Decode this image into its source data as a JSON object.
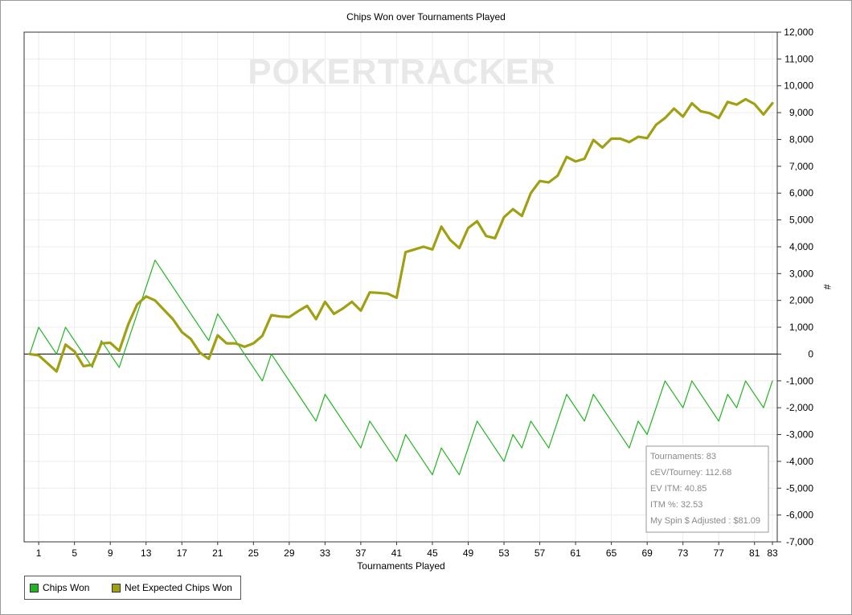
{
  "chart_data": {
    "type": "line",
    "title": "Chips Won over Tournaments Played",
    "xlabel": "Tournaments Played",
    "ylabel": "#",
    "watermark": "POKERTRACKER",
    "xlim": [
      0,
      83
    ],
    "ylim": [
      -7000,
      12000
    ],
    "x_ticks": [
      1,
      5,
      9,
      13,
      17,
      21,
      25,
      29,
      33,
      37,
      41,
      45,
      49,
      53,
      57,
      61,
      65,
      69,
      73,
      77,
      81,
      83
    ],
    "y_ticks": [
      -7000,
      -6000,
      -5000,
      -4000,
      -3000,
      -2000,
      -1000,
      0,
      1000,
      2000,
      3000,
      4000,
      5000,
      6000,
      7000,
      8000,
      9000,
      10000,
      11000,
      12000
    ],
    "y_tick_labels": [
      "-7,000",
      "-6,000",
      "-5,000",
      "-4,000",
      "-3,000",
      "-2,000",
      "-1,000",
      "0",
      "1,000",
      "2,000",
      "3,000",
      "4,000",
      "5,000",
      "6,000",
      "7,000",
      "8,000",
      "9,000",
      "10,000",
      "11,000",
      "12,000"
    ],
    "grid": true,
    "legend_position": "bottom-left",
    "series": [
      {
        "name": "Chips Won",
        "color": "#22b422",
        "points": [
          [
            0,
            0
          ],
          [
            1,
            1000
          ],
          [
            3,
            0
          ],
          [
            4,
            1000
          ],
          [
            7,
            -500
          ],
          [
            8,
            500
          ],
          [
            10,
            -500
          ],
          [
            14,
            3500
          ],
          [
            20,
            500
          ],
          [
            21,
            1500
          ],
          [
            26,
            -1000
          ],
          [
            27,
            0
          ],
          [
            32,
            -2500
          ],
          [
            33,
            -1500
          ],
          [
            37,
            -3500
          ],
          [
            38,
            -2500
          ],
          [
            41,
            -4000
          ],
          [
            42,
            -3000
          ],
          [
            45,
            -4500
          ],
          [
            46,
            -3500
          ],
          [
            48,
            -4500
          ],
          [
            50,
            -2500
          ],
          [
            53,
            -4000
          ],
          [
            54,
            -3000
          ],
          [
            55,
            -3500
          ],
          [
            56,
            -2500
          ],
          [
            58,
            -3500
          ],
          [
            60,
            -1500
          ],
          [
            62,
            -2500
          ],
          [
            63,
            -1500
          ],
          [
            67,
            -3500
          ],
          [
            68,
            -2500
          ],
          [
            69,
            -3000
          ],
          [
            71,
            -1000
          ],
          [
            73,
            -2000
          ],
          [
            74,
            -1000
          ],
          [
            77,
            -2500
          ],
          [
            78,
            -1500
          ],
          [
            79,
            -2000
          ],
          [
            80,
            -1000
          ],
          [
            82,
            -2000
          ],
          [
            83,
            -1000
          ]
        ]
      },
      {
        "name": "Net Expected Chips Won",
        "color": "#a0a014",
        "points": [
          [
            0,
            0
          ],
          [
            1,
            -50
          ],
          [
            2,
            -350
          ],
          [
            3,
            -650
          ],
          [
            4,
            350
          ],
          [
            5,
            100
          ],
          [
            6,
            -450
          ],
          [
            7,
            -400
          ],
          [
            8,
            400
          ],
          [
            9,
            420
          ],
          [
            10,
            120
          ],
          [
            11,
            1100
          ],
          [
            12,
            1850
          ],
          [
            13,
            2150
          ],
          [
            14,
            2000
          ],
          [
            15,
            1650
          ],
          [
            16,
            1300
          ],
          [
            17,
            820
          ],
          [
            18,
            560
          ],
          [
            19,
            60
          ],
          [
            20,
            -180
          ],
          [
            21,
            700
          ],
          [
            22,
            400
          ],
          [
            23,
            400
          ],
          [
            24,
            270
          ],
          [
            25,
            400
          ],
          [
            26,
            680
          ],
          [
            27,
            1450
          ],
          [
            28,
            1400
          ],
          [
            29,
            1380
          ],
          [
            30,
            1600
          ],
          [
            31,
            1800
          ],
          [
            32,
            1300
          ],
          [
            33,
            1950
          ],
          [
            34,
            1500
          ],
          [
            35,
            1700
          ],
          [
            36,
            1950
          ],
          [
            37,
            1620
          ],
          [
            38,
            2300
          ],
          [
            39,
            2280
          ],
          [
            40,
            2250
          ],
          [
            41,
            2100
          ],
          [
            42,
            3800
          ],
          [
            43,
            3900
          ],
          [
            44,
            4000
          ],
          [
            45,
            3900
          ],
          [
            46,
            4750
          ],
          [
            47,
            4250
          ],
          [
            48,
            3950
          ],
          [
            49,
            4700
          ],
          [
            50,
            4950
          ],
          [
            51,
            4400
          ],
          [
            52,
            4320
          ],
          [
            53,
            5100
          ],
          [
            54,
            5400
          ],
          [
            55,
            5150
          ],
          [
            56,
            6000
          ],
          [
            57,
            6450
          ],
          [
            58,
            6400
          ],
          [
            59,
            6650
          ],
          [
            60,
            7350
          ],
          [
            61,
            7180
          ],
          [
            62,
            7280
          ],
          [
            63,
            7980
          ],
          [
            64,
            7700
          ],
          [
            65,
            8030
          ],
          [
            66,
            8030
          ],
          [
            67,
            7900
          ],
          [
            68,
            8100
          ],
          [
            69,
            8050
          ],
          [
            70,
            8550
          ],
          [
            71,
            8800
          ],
          [
            72,
            9150
          ],
          [
            73,
            8850
          ],
          [
            74,
            9350
          ],
          [
            75,
            9050
          ],
          [
            76,
            8980
          ],
          [
            77,
            8800
          ],
          [
            78,
            9400
          ],
          [
            79,
            9300
          ],
          [
            80,
            9500
          ],
          [
            81,
            9320
          ],
          [
            82,
            8930
          ],
          [
            83,
            9350
          ]
        ]
      }
    ]
  },
  "info_box": {
    "tournaments": "Tournaments: 83",
    "cev_tourney": "cEV/Tourney: 112.68",
    "ev_itm": "EV ITM: 40.85",
    "itm_pct": "ITM %: 32.53",
    "my_spin_adjusted": "My Spin $ Adjusted : $81.09"
  },
  "legend": {
    "items": [
      {
        "label": "Chips Won",
        "color": "#22b422"
      },
      {
        "label": "Net Expected Chips Won",
        "color": "#a0a014"
      }
    ]
  }
}
